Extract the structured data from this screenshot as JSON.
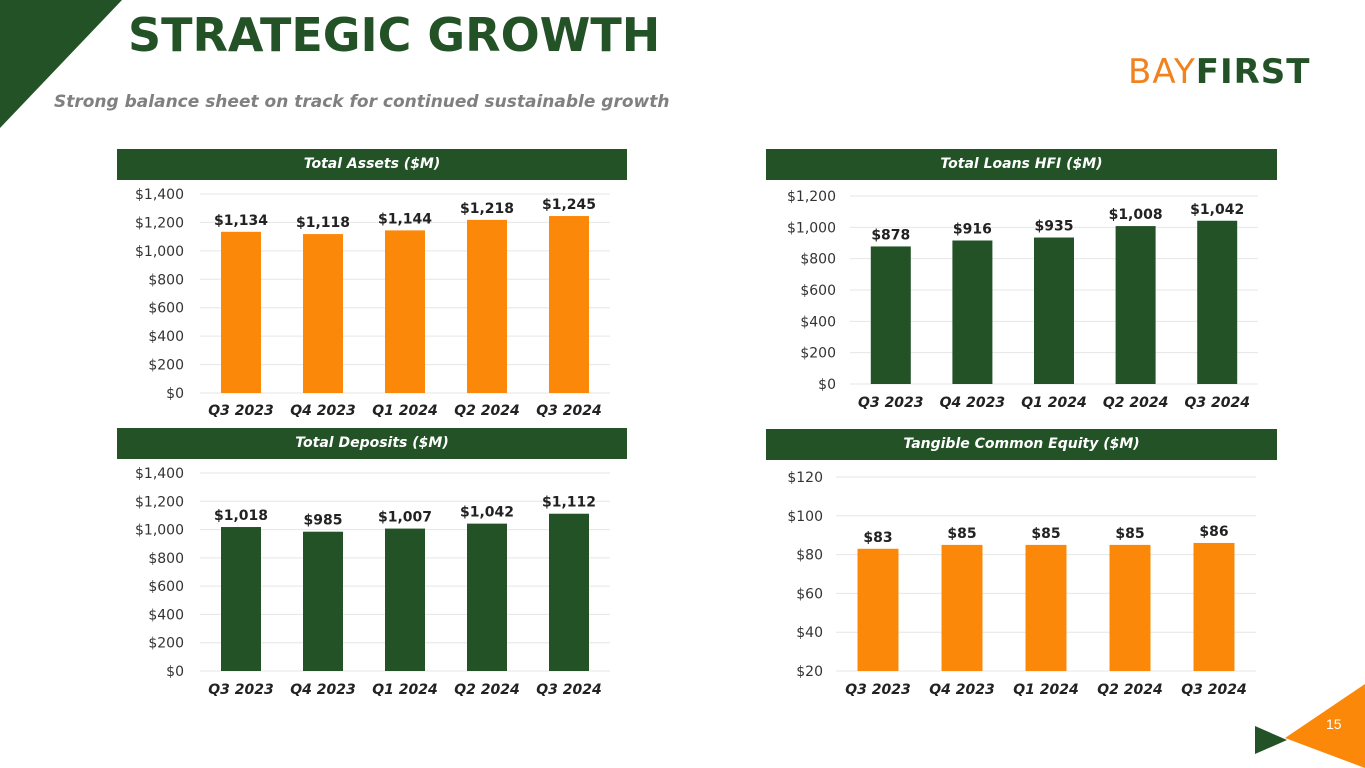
{
  "slide": {
    "title": "STRATEGIC GROWTH",
    "subtitle": "Strong balance sheet on track for continued sustainable growth",
    "logo_part1": "BAY",
    "logo_part2": "FIRST",
    "page_number": "15",
    "colors": {
      "primary_green": "#235227",
      "accent_orange": "#fb8809",
      "logo_orange": "#f0831f",
      "gridline": "#e6e6e6"
    }
  },
  "chart_data": [
    {
      "type": "bar",
      "title": "Total Assets  ($M)",
      "categories": [
        "Q3 2023",
        "Q4 2023",
        "Q1 2024",
        "Q2 2024",
        "Q3 2024"
      ],
      "values": [
        1134,
        1118,
        1144,
        1218,
        1245
      ],
      "value_labels": [
        "$1,134",
        "$1,118",
        "$1,144",
        "$1,218",
        "$1,245"
      ],
      "yticks": [
        0,
        200,
        400,
        600,
        800,
        1000,
        1200,
        1400
      ],
      "ytick_labels": [
        "$0",
        "$200",
        "$400",
        "$600",
        "$800",
        "$1,000",
        "$1,200",
        "$1,400"
      ],
      "ylim": [
        0,
        1400
      ],
      "bar_color": "#fb8809",
      "grid": true,
      "legend": "none"
    },
    {
      "type": "bar",
      "title": "Total Loans HFI ($M)",
      "categories": [
        "Q3 2023",
        "Q4 2023",
        "Q1 2024",
        "Q2 2024",
        "Q3 2024"
      ],
      "values": [
        878,
        916,
        935,
        1008,
        1042
      ],
      "value_labels": [
        "$878",
        "$916",
        "$935",
        "$1,008",
        "$1,042"
      ],
      "yticks": [
        0,
        200,
        400,
        600,
        800,
        1000,
        1200
      ],
      "ytick_labels": [
        "$0",
        "$200",
        "$400",
        "$600",
        "$800",
        "$1,000",
        "$1,200"
      ],
      "ylim": [
        0,
        1200
      ],
      "bar_color": "#235227",
      "grid": true,
      "legend": "none"
    },
    {
      "type": "bar",
      "title": "Total Deposits ($M)",
      "categories": [
        "Q3 2023",
        "Q4 2023",
        "Q1 2024",
        "Q2 2024",
        "Q3 2024"
      ],
      "values": [
        1018,
        985,
        1007,
        1042,
        1112
      ],
      "value_labels": [
        "$1,018",
        "$985",
        "$1,007",
        "$1,042",
        "$1,112"
      ],
      "yticks": [
        0,
        200,
        400,
        600,
        800,
        1000,
        1200,
        1400
      ],
      "ytick_labels": [
        "$0",
        "$200",
        "$400",
        "$600",
        "$800",
        "$1,000",
        "$1,200",
        "$1,400"
      ],
      "ylim": [
        0,
        1400
      ],
      "bar_color": "#235227",
      "grid": true,
      "legend": "none"
    },
    {
      "type": "bar",
      "title": "Tangible Common Equity ($M)",
      "categories": [
        "Q3 2023",
        "Q4 2023",
        "Q1 2024",
        "Q2 2024",
        "Q3 2024"
      ],
      "values": [
        83,
        85,
        85,
        85,
        86
      ],
      "value_labels": [
        "$83",
        "$85",
        "$85",
        "$85",
        "$86"
      ],
      "yticks": [
        20,
        40,
        60,
        80,
        100,
        120
      ],
      "ytick_labels": [
        "$20",
        "$40",
        "$60",
        "$80",
        "$100",
        "$120"
      ],
      "ylim": [
        20,
        120
      ],
      "bar_color": "#fb8809",
      "grid": true,
      "legend": "none"
    }
  ]
}
